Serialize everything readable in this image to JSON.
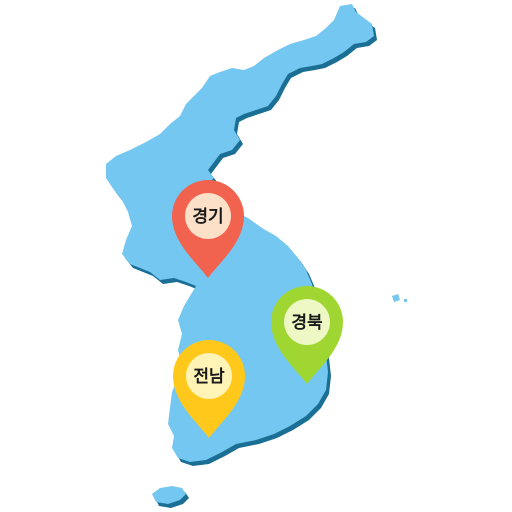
{
  "map": {
    "land_color": "#74c7f0",
    "shadow_color": "#1b6f95"
  },
  "markers": [
    {
      "id": "gyeonggi",
      "label": "경기",
      "pin_color": "#f2634f",
      "pin_dark": "#c64535",
      "inner_color": "#fde0c8"
    },
    {
      "id": "gyeongbuk",
      "label": "경북",
      "pin_color": "#9fd632",
      "pin_dark": "#7aac1c",
      "inner_color": "#eef8c4"
    },
    {
      "id": "jeonnam",
      "label": "전남",
      "pin_color": "#ffc81a",
      "pin_dark": "#d9a404",
      "inner_color": "#fff3b6"
    }
  ]
}
